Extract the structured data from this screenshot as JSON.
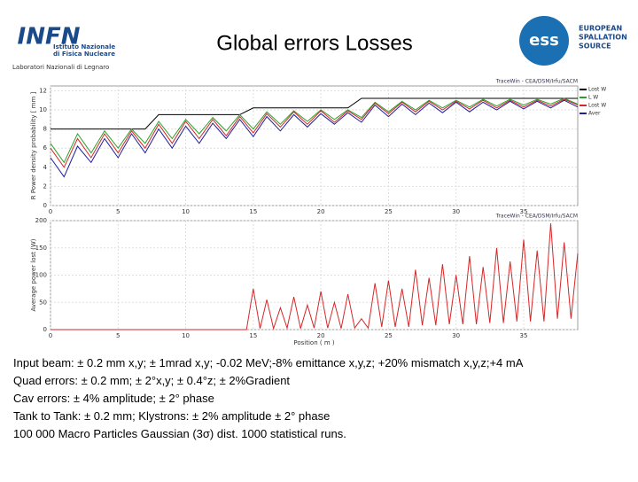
{
  "header": {
    "title": "Global errors Losses",
    "infn": {
      "logo": "INFN",
      "line1": "Istituto Nazionale",
      "line2": "di Fisica Nucleare",
      "lab": "Laboratori Nazionali di Legnaro"
    },
    "ess": {
      "logo": "ess",
      "line1": "EUROPEAN",
      "line2": "SPALLATION",
      "line3": "SOURCE"
    }
  },
  "body": [
    "Input beam: ± 0.2 mm x,y; ± 1mrad x,y; -0.02 MeV;-8% emittance x,y,z; +20% mismatch x,y,z;+4 mA",
    "Quad errors: ± 0.2 mm; ± 2°x,y; ± 0.4°z; ± 2%Gradient",
    "Cav errors: ± 4% amplitude; ± 2° phase",
    "Tank to Tank: ± 0.2 mm; Klystrons: ± 2% amplitude ± 2° phase",
    "100 000 Macro Particles Gaussian (3σ) dist. 1000 statistical runs."
  ],
  "chart_data": [
    {
      "type": "line",
      "source": "TraceWin - CEA/DSM/Irfu/SACM",
      "ylabel": "R Power density probability [ mm ]",
      "x": [
        0,
        1,
        2,
        3,
        4,
        5,
        6,
        7,
        8,
        9,
        10,
        11,
        12,
        13,
        14,
        15,
        16,
        17,
        18,
        19,
        20,
        21,
        22,
        23,
        24,
        25,
        26,
        27,
        28,
        29,
        30,
        31,
        32,
        33,
        34,
        35,
        36,
        37,
        38,
        39
      ],
      "series": [
        {
          "name": "Lost W",
          "color": "#000000",
          "values": [
            8,
            8,
            8,
            8,
            8,
            8,
            8,
            8,
            9.5,
            9.5,
            9.5,
            9.5,
            9.5,
            9.5,
            9.5,
            10.2,
            10.2,
            10.2,
            10.2,
            10.2,
            10.2,
            10.2,
            10.2,
            11.2,
            11.2,
            11.2,
            11.2,
            11.2,
            11.2,
            11.2,
            11.2,
            11.2,
            11.2,
            11.2,
            11.2,
            11.2,
            11.2,
            11.2,
            11.2,
            11.2
          ]
        },
        {
          "name": "L W",
          "color": "#2ca02c",
          "values": [
            6.5,
            4.5,
            7.5,
            5.5,
            7.8,
            6,
            8,
            6.5,
            8.8,
            7,
            9,
            7.5,
            9.2,
            7.8,
            9.5,
            8,
            9.8,
            8.5,
            9.9,
            8.8,
            10,
            9,
            10,
            9.2,
            10.8,
            9.8,
            10.9,
            10,
            11,
            10.2,
            11,
            10.3,
            11.1,
            10.4,
            11.1,
            10.5,
            11.1,
            10.6,
            11.2,
            10.6
          ]
        },
        {
          "name": "Lost W",
          "color": "#d62728",
          "values": [
            6,
            4,
            7,
            5,
            7.5,
            5.5,
            7.8,
            6,
            8.5,
            6.5,
            8.8,
            7,
            9,
            7.3,
            9.3,
            7.6,
            9.6,
            8.2,
            9.8,
            8.5,
            9.9,
            8.7,
            9.9,
            9,
            10.7,
            9.6,
            10.8,
            9.8,
            10.9,
            10,
            10.9,
            10.1,
            11,
            10.2,
            11,
            10.3,
            11,
            10.4,
            11.1,
            10.5
          ]
        },
        {
          "name": "Aver",
          "color": "#1f1f9f",
          "values": [
            5,
            3,
            6.2,
            4.5,
            7,
            5,
            7.5,
            5.5,
            8,
            6,
            8.3,
            6.5,
            8.6,
            7,
            9,
            7.2,
            9.3,
            7.8,
            9.5,
            8.2,
            9.6,
            8.5,
            9.7,
            8.7,
            10.5,
            9.3,
            10.6,
            9.5,
            10.7,
            9.7,
            10.8,
            9.8,
            10.8,
            10,
            10.9,
            10.1,
            10.9,
            10.2,
            11,
            10.3
          ]
        }
      ],
      "xlim": [
        0,
        39
      ],
      "ylim": [
        0,
        12.5
      ],
      "xticks": [
        0,
        5,
        10,
        15,
        20,
        25,
        30,
        35
      ],
      "yticks": [
        0,
        2,
        4,
        6,
        8,
        10,
        12
      ],
      "grid": true
    },
    {
      "type": "line",
      "source": "TraceWin - CEA/DSM/Irfu/SACM",
      "ylabel": "Average power lost (W)",
      "xlabel": "Position ( m )",
      "x": [
        0,
        0.5,
        1,
        1.5,
        2,
        2.5,
        3,
        3.5,
        4,
        4.5,
        5,
        5.5,
        6,
        6.5,
        7,
        7.5,
        8,
        8.5,
        9,
        9.5,
        10,
        10.5,
        11,
        11.5,
        12,
        12.5,
        13,
        13.5,
        14,
        14.5,
        15,
        15.5,
        16,
        16.5,
        17,
        17.5,
        18,
        18.5,
        19,
        19.5,
        20,
        20.5,
        21,
        21.5,
        22,
        22.5,
        23,
        23.5,
        24,
        24.5,
        25,
        25.5,
        26,
        26.5,
        27,
        27.5,
        28,
        28.5,
        29,
        29.5,
        30,
        30.5,
        31,
        31.5,
        32,
        32.5,
        33,
        33.5,
        34,
        34.5,
        35,
        35.5,
        36,
        36.5,
        37,
        37.5,
        38,
        38.5,
        39
      ],
      "series": [
        {
          "name": "Average power lost",
          "color": "#d62728",
          "values": [
            0,
            0,
            0,
            0,
            0,
            0,
            0,
            0,
            0,
            0,
            0,
            0,
            0,
            0,
            0,
            0,
            0,
            0,
            0,
            0,
            0,
            0,
            0,
            0,
            0,
            0,
            0,
            0,
            0,
            0,
            75,
            2,
            55,
            2,
            40,
            3,
            60,
            2,
            45,
            3,
            70,
            3,
            50,
            2,
            65,
            3,
            20,
            3,
            85,
            5,
            90,
            5,
            75,
            5,
            110,
            8,
            95,
            8,
            120,
            10,
            100,
            10,
            135,
            10,
            115,
            12,
            150,
            12,
            125,
            15,
            165,
            15,
            145,
            15,
            195,
            20,
            160,
            20,
            140
          ]
        }
      ],
      "xlim": [
        0,
        39
      ],
      "ylim": [
        0,
        200
      ],
      "xticks": [
        0,
        5,
        10,
        15,
        20,
        25,
        30,
        35
      ],
      "yticks": [
        0,
        50,
        100,
        150,
        200
      ],
      "grid": true
    }
  ]
}
